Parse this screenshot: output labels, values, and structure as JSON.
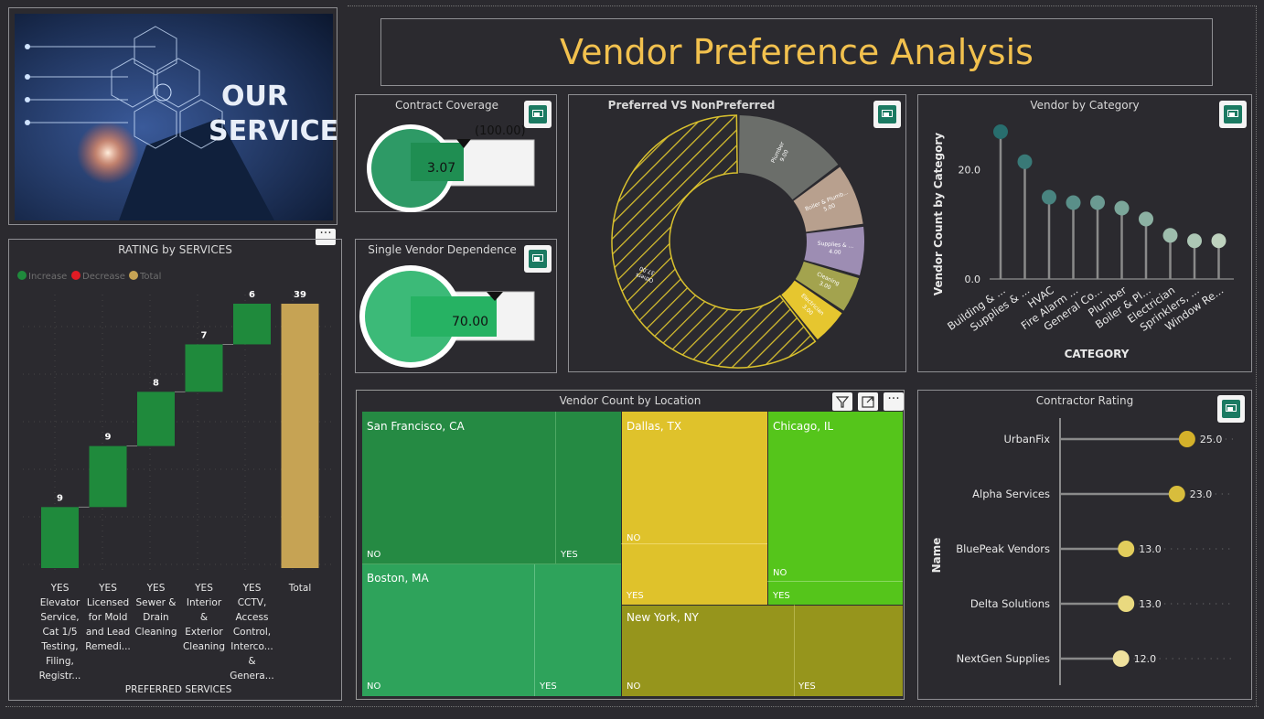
{
  "title": "Vendor Preference Analysis",
  "banner": {
    "line1": "OUR",
    "line2": "SERVICES"
  },
  "contract_coverage": {
    "title": "Contract Coverage",
    "value": "3.07",
    "target": "(100.00)",
    "fill_fraction": 0.0307
  },
  "single_vendor": {
    "title": "Single Vendor Dependence",
    "value": "70.00",
    "fill_fraction": 0.7
  },
  "donut": {
    "title": "Preferred  VS NonPreferred",
    "slices": [
      {
        "label": "Plumber",
        "value": 9.0,
        "value_label": "9.00",
        "color": "#6b6e6a"
      },
      {
        "label": "Boiler & Plumb...",
        "value": 5.0,
        "value_label": "5.00",
        "color": "#b8a08e"
      },
      {
        "label": "Supplies & ...",
        "value": 4.0,
        "value_label": "4.00",
        "color": "#9d8db3"
      },
      {
        "label": "Cleaning",
        "value": 3.0,
        "value_label": "3.00",
        "color": "#a3a34e"
      },
      {
        "label": "Electrician",
        "value": 3.0,
        "value_label": "3.00",
        "color": "#e6c62f"
      },
      {
        "label": "Others",
        "value": 37.0,
        "value_label": "37.00",
        "color": "#2b2a2f"
      }
    ]
  },
  "chart_data": [
    {
      "type": "lollipop",
      "title": "Vendor by Category",
      "xlabel": "CATEGORY",
      "ylabel": "Vendor Count by Category",
      "ylim": [
        0,
        27
      ],
      "yticks": [
        0,
        20
      ],
      "ytick_labels": [
        "0.0",
        "20.0"
      ],
      "categories": [
        "Building & ...",
        "Supplies & ...",
        "HVAC",
        "Fire Alarm ...",
        "General Co...",
        "Plumber",
        "Boiler & Pl...",
        "Electrician",
        "Sprinklers, ...",
        "Window Re..."
      ],
      "values": [
        27,
        21.5,
        15,
        14,
        14,
        13,
        11,
        8,
        7,
        7
      ]
    },
    {
      "type": "bar",
      "title": "RATING by SERVICES",
      "xlabel": "PREFERRED SERVICES",
      "legend": [
        "Increase",
        "Decrease",
        "Total"
      ],
      "legend_colors": [
        "#1f8a3c",
        "#e01b24",
        "#c6a354"
      ],
      "categories": [
        [
          "YES",
          "Elevator",
          "Service,",
          "Cat 1/5",
          "Testing,",
          "Filing,",
          "Registr..."
        ],
        [
          "YES",
          "Licensed",
          "for Mold",
          "and Lead",
          "Remedi..."
        ],
        [
          "YES",
          "Sewer &",
          "Drain",
          "Cleaning"
        ],
        [
          "YES",
          "Interior",
          "&",
          "Exterior",
          "Cleaning"
        ],
        [
          "YES",
          "CCTV,",
          "Access",
          "Control,",
          "Interco...",
          "&",
          "Genera..."
        ],
        [
          "Total"
        ]
      ],
      "values": [
        9,
        9,
        8,
        7,
        6,
        39
      ],
      "value_labels": [
        "9",
        "9",
        "8",
        "7",
        "6",
        "39"
      ],
      "ylim": [
        0,
        39
      ]
    },
    {
      "type": "lollipop-horizontal",
      "title": "Contractor Rating",
      "ylabel": "Name",
      "categories": [
        "UrbanFix",
        "Alpha Services",
        "BluePeak Vendors",
        "Delta Solutions",
        "NextGen Supplies"
      ],
      "values": [
        25,
        23,
        13,
        13,
        12
      ],
      "value_labels": [
        "25.0",
        "23.0",
        "13.0",
        "13.0",
        "12.0"
      ],
      "colors": [
        "#d4b12a",
        "#d8bd3c",
        "#e2cd5c",
        "#e9d97f",
        "#efe19d"
      ],
      "xlim": [
        0,
        36
      ]
    }
  ],
  "treemap": {
    "title": "Vendor Count by Location",
    "cells": [
      {
        "location": "San Francisco, CA",
        "no": "NO",
        "yes": "YES"
      },
      {
        "location": "Boston, MA",
        "no": "NO",
        "yes": "YES"
      },
      {
        "location": "Dallas, TX",
        "no": "NO",
        "yes": "YES"
      },
      {
        "location": "New York, NY",
        "no": "NO",
        "yes": "YES"
      },
      {
        "location": "Chicago, IL",
        "no": "NO",
        "yes": "YES"
      }
    ]
  },
  "more_options": "···",
  "colors": {
    "bg": "#2b2a2f",
    "title": "#f2c14e",
    "accent": "#1b7a62"
  }
}
